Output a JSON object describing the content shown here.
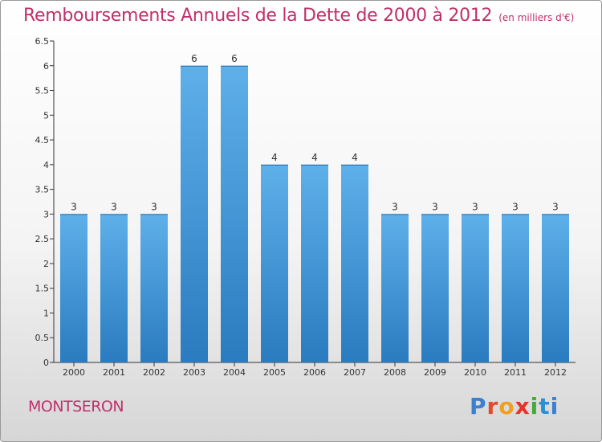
{
  "header": {
    "title": "Remboursements Annuels de la Dette de 2000 à 2012",
    "subtitle": "(en milliers d'€)"
  },
  "footer": {
    "commune": "MONTSERON",
    "logo_text": "Proxiti"
  },
  "colors": {
    "title": "#c0306a",
    "bar_top": "#5eb0ea",
    "bar_bottom": "#2a7bbf"
  },
  "chart_data": {
    "type": "bar",
    "title": "Remboursements Annuels de la Dette de 2000 à 2012",
    "subtitle": "(en milliers d'€)",
    "categories": [
      "2000",
      "2001",
      "2002",
      "2003",
      "2004",
      "2005",
      "2006",
      "2007",
      "2008",
      "2009",
      "2010",
      "2011",
      "2012"
    ],
    "values": [
      3,
      3,
      3,
      6,
      6,
      4,
      4,
      4,
      3,
      3,
      3,
      3,
      3
    ],
    "data_labels": [
      "3",
      "3",
      "3",
      "6",
      "6",
      "4",
      "4",
      "4",
      "3",
      "3",
      "3",
      "3",
      "3"
    ],
    "y_ticks": [
      "0",
      "0.5",
      "1",
      "1.5",
      "2",
      "2.5",
      "3",
      "3.5",
      "4",
      "4.5",
      "5",
      "5.5",
      "6",
      "6.5"
    ],
    "ylim": [
      0,
      6.5
    ],
    "xlabel": "",
    "ylabel": "",
    "grid": false,
    "legend": "none"
  }
}
